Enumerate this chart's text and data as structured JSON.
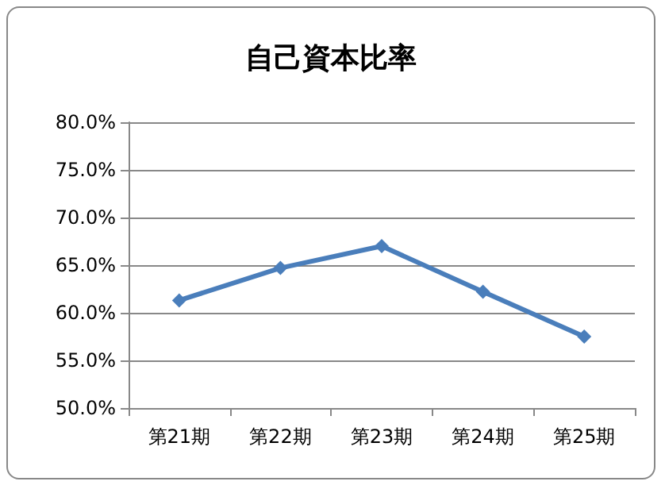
{
  "chart_data": {
    "type": "line",
    "title": "自己資本比率",
    "categories": [
      "第21期",
      "第22期",
      "第23期",
      "第24期",
      "第25期"
    ],
    "series": [
      {
        "color": "#4a7ebb",
        "values": [
          61.3,
          64.7,
          67.0,
          62.2,
          57.5
        ]
      }
    ],
    "ylim": [
      50,
      80
    ],
    "yticks": [
      {
        "value": 50,
        "label": "50.0%"
      },
      {
        "value": 55,
        "label": "55.0%"
      },
      {
        "value": 60,
        "label": "60.0%"
      },
      {
        "value": 65,
        "label": "65.0%"
      },
      {
        "value": 70,
        "label": "70.0%"
      },
      {
        "value": 75,
        "label": "75.0%"
      },
      {
        "value": 80,
        "label": "80.0%"
      }
    ],
    "grid": "y",
    "marker": "diamond",
    "line_style": "solid"
  }
}
